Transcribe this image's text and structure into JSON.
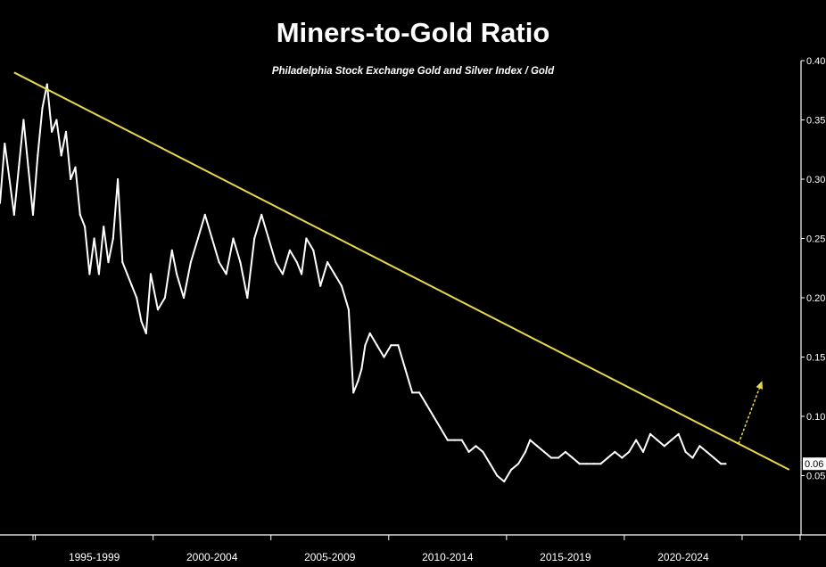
{
  "chart_data": {
    "type": "line",
    "title": "Miners-to-Gold Ratio",
    "subtitle": "Philadelphia Stock Exchange Gold and Silver Index / Gold",
    "xlabel": "",
    "ylabel": "",
    "x_tick_labels": [
      "1995-1999",
      "2000-2004",
      "2005-2009",
      "2010-2014",
      "2015-2019",
      "2020-2024"
    ],
    "xlim": [
      1993.5,
      2027.5
    ],
    "ylim": [
      0.0,
      0.4
    ],
    "y_ticks": [
      {
        "value": 0.05,
        "label": "0.05"
      },
      {
        "value": 0.1,
        "label": "0.10"
      },
      {
        "value": 0.15,
        "label": "0.15"
      },
      {
        "value": 0.2,
        "label": "0.20"
      },
      {
        "value": 0.25,
        "label": "0.25"
      },
      {
        "value": 0.3,
        "label": "0.30"
      },
      {
        "value": 0.35,
        "label": "0.35"
      },
      {
        "value": 0.4,
        "label": "0.40"
      }
    ],
    "last_value_label": "0.06",
    "series": [
      {
        "color": "#ffffff",
        "x": [
          1993.5,
          1993.7,
          1993.9,
          1994.1,
          1994.3,
          1994.5,
          1994.7,
          1994.9,
          1995.1,
          1995.3,
          1995.5,
          1995.7,
          1995.9,
          1996.1,
          1996.3,
          1996.5,
          1996.7,
          1996.9,
          1997.1,
          1997.3,
          1997.5,
          1997.7,
          1997.9,
          1998.1,
          1998.3,
          1998.5,
          1998.7,
          1998.9,
          1999.1,
          1999.3,
          1999.5,
          1999.7,
          1999.9,
          2000.2,
          2000.5,
          2000.8,
          2001.0,
          2001.3,
          2001.6,
          2001.9,
          2002.2,
          2002.5,
          2002.8,
          2003.1,
          2003.4,
          2003.7,
          2004.0,
          2004.3,
          2004.6,
          2004.9,
          2005.2,
          2005.5,
          2005.8,
          2006.1,
          2006.3,
          2006.5,
          2006.8,
          2007.1,
          2007.4,
          2007.7,
          2008.0,
          2008.3,
          2008.5,
          2008.7,
          2008.85,
          2009.0,
          2009.2,
          2009.5,
          2009.8,
          2010.1,
          2010.4,
          2010.7,
          2011.0,
          2011.3,
          2011.6,
          2011.9,
          2012.2,
          2012.5,
          2012.8,
          2013.1,
          2013.4,
          2013.7,
          2014.0,
          2014.3,
          2014.6,
          2014.9,
          2015.2,
          2015.5,
          2015.8,
          2016.0,
          2016.3,
          2016.6,
          2016.9,
          2017.2,
          2017.5,
          2017.8,
          2018.1,
          2018.4,
          2018.7,
          2019.0,
          2019.3,
          2019.6,
          2019.9,
          2020.2,
          2020.5,
          2020.8,
          2021.1,
          2021.4,
          2021.7,
          2022.0,
          2022.3,
          2022.6,
          2022.9,
          2023.2,
          2023.5,
          2023.8,
          2024.1,
          2024.3
        ],
        "y": [
          0.28,
          0.33,
          0.3,
          0.27,
          0.31,
          0.35,
          0.31,
          0.27,
          0.32,
          0.36,
          0.38,
          0.34,
          0.35,
          0.32,
          0.34,
          0.3,
          0.31,
          0.27,
          0.26,
          0.22,
          0.25,
          0.22,
          0.26,
          0.23,
          0.25,
          0.3,
          0.23,
          0.22,
          0.21,
          0.2,
          0.18,
          0.17,
          0.22,
          0.19,
          0.2,
          0.24,
          0.22,
          0.2,
          0.23,
          0.25,
          0.27,
          0.25,
          0.23,
          0.22,
          0.25,
          0.23,
          0.2,
          0.25,
          0.27,
          0.25,
          0.23,
          0.22,
          0.24,
          0.23,
          0.22,
          0.25,
          0.24,
          0.21,
          0.23,
          0.22,
          0.21,
          0.19,
          0.12,
          0.13,
          0.14,
          0.16,
          0.17,
          0.16,
          0.15,
          0.16,
          0.16,
          0.14,
          0.12,
          0.12,
          0.11,
          0.1,
          0.09,
          0.08,
          0.08,
          0.08,
          0.07,
          0.075,
          0.07,
          0.06,
          0.05,
          0.045,
          0.055,
          0.06,
          0.07,
          0.08,
          0.075,
          0.07,
          0.065,
          0.065,
          0.07,
          0.065,
          0.06,
          0.06,
          0.06,
          0.06,
          0.065,
          0.07,
          0.065,
          0.07,
          0.08,
          0.07,
          0.085,
          0.08,
          0.075,
          0.08,
          0.085,
          0.07,
          0.065,
          0.075,
          0.07,
          0.065,
          0.06,
          0.06
        ]
      }
    ],
    "trendline": {
      "color": "#e6d84a",
      "x": [
        1994.1,
        2027.0
      ],
      "y": [
        0.39,
        0.055
      ]
    },
    "arrow": {
      "color": "#e6d84a",
      "x": [
        2024.85,
        2025.85
      ],
      "y": [
        0.077,
        0.13
      ]
    },
    "grid": false,
    "legend": "none"
  }
}
